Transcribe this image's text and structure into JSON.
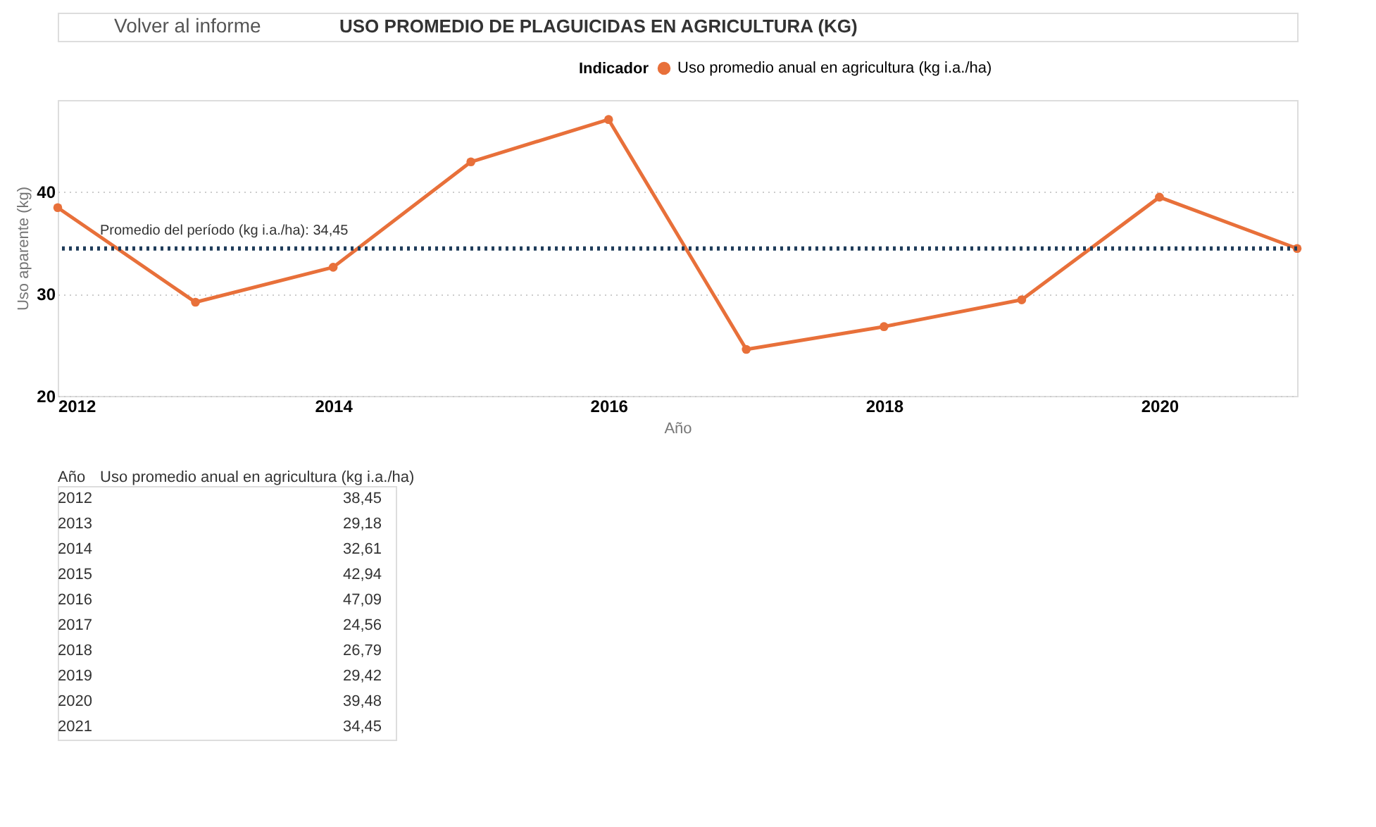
{
  "chart_data": {
    "type": "line",
    "title": "USO PROMEDIO DE PLAGUICIDAS EN AGRICULTURA (KG)",
    "xlabel": "Año",
    "ylabel": "Uso aparente (kg)",
    "legend_title": "Indicador",
    "x": [
      2012,
      2013,
      2014,
      2015,
      2016,
      2017,
      2018,
      2019,
      2020,
      2021
    ],
    "series": [
      {
        "name": "Uso promedio anual en agricultura (kg i.a./ha)",
        "color": "#e8703a",
        "values": [
          38.45,
          29.18,
          32.61,
          42.94,
          47.09,
          24.56,
          26.79,
          29.42,
          39.48,
          34.45
        ]
      }
    ],
    "xlim": [
      2012,
      2021
    ],
    "xticks": [
      2012,
      2014,
      2016,
      2018,
      2020
    ],
    "ylim": [
      20,
      49
    ],
    "yticks": [
      20,
      30,
      40
    ],
    "ref_lines": [
      {
        "axis": "y",
        "value": 34.45,
        "label": "Promedio del período (kg i.a./ha): 34,45",
        "color": "#1f3c5a",
        "line_style": "dotted"
      }
    ],
    "annotations": [
      "Volver al informe",
      "Año",
      "Uso promedio anual en agricultura (kg i.a./ha)",
      "2012",
      "38,45",
      "2013",
      "29,18",
      "2014",
      "32,61",
      "2015",
      "42,94",
      "2016",
      "47,09",
      "2017",
      "24,56",
      "2018",
      "26,79",
      "2019",
      "29,42",
      "2020",
      "39,48",
      "2021",
      "34,45"
    ],
    "grid": "y",
    "legend": "top",
    "marker": "circle",
    "line_style": "solid"
  }
}
